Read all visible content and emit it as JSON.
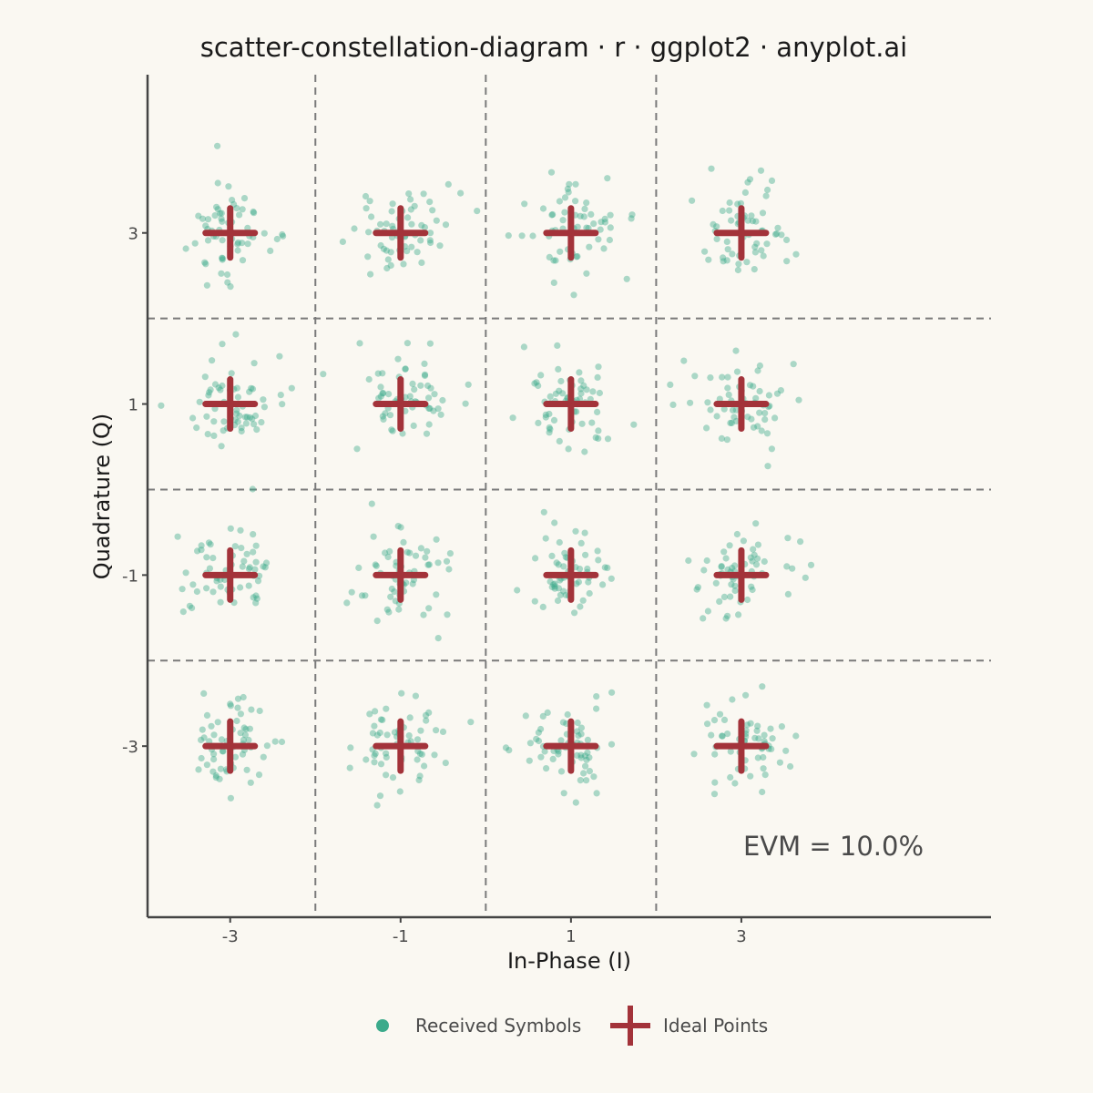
{
  "chart_data": {
    "type": "scatter",
    "title": "scatter-constellation-diagram · r · ggplot2 · anyplot.ai",
    "xlabel": "In-Phase (I)",
    "ylabel": "Quadrature (Q)",
    "xlim": [
      -3.97,
      5.93
    ],
    "ylim": [
      -5.0,
      4.85
    ],
    "x_ticks": [
      -3,
      -1,
      1,
      3
    ],
    "y_ticks": [
      -3,
      -1,
      1,
      3
    ],
    "x_tick_labels": [
      "-3",
      "-1",
      "1",
      "3"
    ],
    "y_tick_labels": [
      "-3",
      "-1",
      "1",
      "3"
    ],
    "decision_boundaries_x": [
      -2,
      0,
      2
    ],
    "decision_boundaries_y": [
      -2,
      0,
      2
    ],
    "grid": false,
    "legend_position": "bottom",
    "legend": {
      "received_label": "Received Symbols",
      "ideal_label": "Ideal Points"
    },
    "annotation": "EVM = 10.0%",
    "colors": {
      "received": "#3BAA8B",
      "ideal": "#A3333A",
      "boundary": "#7A7A7A",
      "axis": "#444444",
      "background": "#FAF8F2"
    },
    "series": [
      {
        "name": "Ideal Points",
        "marker": "cross",
        "points": [
          [
            -3,
            -3
          ],
          [
            -3,
            -1
          ],
          [
            -3,
            1
          ],
          [
            -3,
            3
          ],
          [
            -1,
            -3
          ],
          [
            -1,
            -1
          ],
          [
            -1,
            1
          ],
          [
            -1,
            3
          ],
          [
            1,
            -3
          ],
          [
            1,
            -1
          ],
          [
            1,
            1
          ],
          [
            1,
            3
          ],
          [
            3,
            -3
          ],
          [
            3,
            -1
          ],
          [
            3,
            1
          ],
          [
            3,
            3
          ]
        ]
      },
      {
        "name": "Received Symbols",
        "marker": "circle",
        "points_per_symbol": 60,
        "noise_std": 0.28
      }
    ]
  }
}
